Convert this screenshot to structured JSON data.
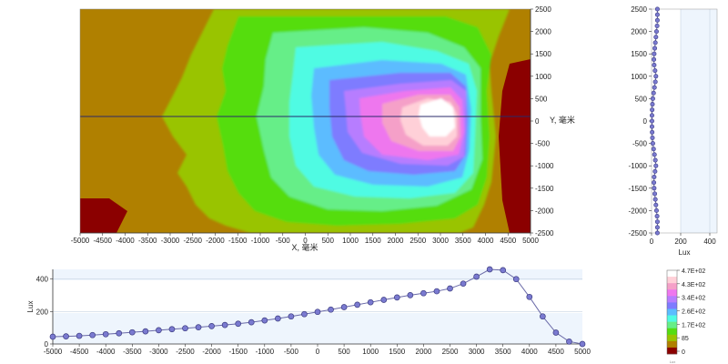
{
  "contour_map": {
    "x_axis_label": "X, 毫米",
    "y_axis_label": "Y, 毫米",
    "x_ticks": [
      -5000,
      -4500,
      -4000,
      -3500,
      -3000,
      -2500,
      -2000,
      -1500,
      -1000,
      -500,
      0,
      500,
      1000,
      1500,
      2000,
      2500,
      3000,
      3500,
      4000,
      4500,
      5000
    ],
    "y_ticks": [
      2500,
      2000,
      1500,
      1000,
      500,
      0,
      -500,
      -1000,
      -1500,
      -2000,
      -2500
    ],
    "xlim": [
      -5000,
      5000
    ],
    "ylim": [
      -2500,
      2500
    ],
    "section_line_y": 0,
    "peak_location": [
      3000,
      0
    ]
  },
  "legend": {
    "labels": [
      "4.7E+02",
      "4.3E+02",
      "3.4E+02",
      "2.6E+02",
      "1.7E+02",
      "85",
      "0"
    ],
    "unit": "Lux",
    "colors": [
      "#ffffff",
      "#ffd0d8",
      "#f5a0c8",
      "#ee77ee",
      "#b77dff",
      "#7e7bff",
      "#5bbcff",
      "#4ffbe3",
      "#66ee88",
      "#55dd11",
      "#99c400",
      "#b08000",
      "#8b0000"
    ]
  },
  "chart_data": [
    {
      "type": "line",
      "xlabel": "",
      "ylabel": "Lux",
      "xlim": [
        -5000,
        5000
      ],
      "ylim": [
        0,
        460
      ],
      "x_ticks": [
        -5000,
        -4500,
        -4000,
        -3500,
        -3000,
        -2500,
        -2000,
        -1500,
        -1000,
        -500,
        0,
        500,
        1000,
        1500,
        2000,
        2500,
        3000,
        3500,
        4000,
        4500,
        5000
      ],
      "y_ticks": [
        0,
        200,
        400
      ],
      "grid": true,
      "x": [
        -5000,
        -4750,
        -4500,
        -4250,
        -4000,
        -3750,
        -3500,
        -3250,
        -3000,
        -2750,
        -2500,
        -2250,
        -2000,
        -1750,
        -1500,
        -1250,
        -1000,
        -750,
        -500,
        -250,
        0,
        250,
        500,
        750,
        1000,
        1250,
        1500,
        1750,
        2000,
        2250,
        2500,
        2750,
        3000,
        3250,
        3500,
        3750,
        4000,
        4250,
        4500,
        4750,
        5000
      ],
      "values": [
        45,
        47,
        50,
        55,
        60,
        66,
        72,
        78,
        85,
        91,
        97,
        103,
        110,
        117,
        125,
        134,
        145,
        157,
        170,
        184,
        198,
        212,
        227,
        242,
        257,
        272,
        287,
        301,
        313,
        325,
        342,
        372,
        415,
        460,
        455,
        400,
        290,
        170,
        70,
        15,
        0
      ]
    },
    {
      "type": "line",
      "xlabel": "Lux",
      "ylabel": "",
      "xlim": [
        0,
        450
      ],
      "ylim": [
        -2500,
        2500
      ],
      "x_ticks": [
        0,
        200,
        400
      ],
      "y_ticks": [
        2500,
        2000,
        1500,
        1000,
        500,
        0,
        -500,
        -1000,
        -1500,
        -2000,
        -2500
      ],
      "y": [
        2500,
        2375,
        2250,
        2125,
        2000,
        1875,
        1750,
        1625,
        1500,
        1375,
        1250,
        1125,
        1000,
        875,
        750,
        625,
        500,
        375,
        250,
        125,
        0,
        -125,
        -250,
        -375,
        -500,
        -625,
        -750,
        -875,
        -1000,
        -1125,
        -1250,
        -1375,
        -1500,
        -1625,
        -1750,
        -1875,
        -2000,
        -2125,
        -2250,
        -2375,
        -2500
      ],
      "values": [
        40,
        40,
        40,
        38,
        34,
        30,
        26,
        22,
        18,
        16,
        18,
        24,
        30,
        26,
        20,
        14,
        9,
        6,
        4,
        3,
        3,
        3,
        4,
        6,
        9,
        14,
        20,
        26,
        30,
        24,
        18,
        16,
        18,
        22,
        26,
        30,
        34,
        38,
        40,
        40,
        40
      ]
    }
  ]
}
